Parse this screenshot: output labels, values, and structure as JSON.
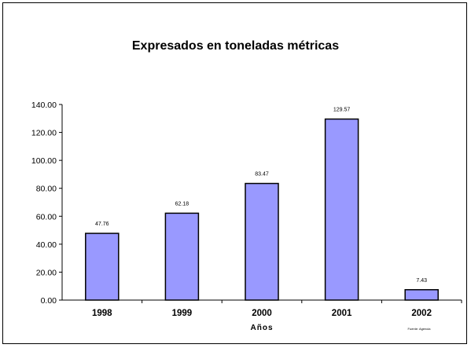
{
  "chart_data": {
    "type": "bar",
    "title": "Expresados en toneladas métricas",
    "xlabel": "Años",
    "ylabel": "",
    "categories": [
      "1998",
      "1999",
      "2000",
      "2001",
      "2002"
    ],
    "values": [
      47.76,
      62.18,
      83.47,
      129.57,
      7.43
    ],
    "value_labels": [
      "47.76",
      "62.18",
      "83.47",
      "129.57",
      "7.43"
    ],
    "ylim": [
      0,
      140
    ],
    "yticks": [
      0,
      20,
      40,
      60,
      80,
      100,
      120,
      140
    ],
    "ytick_labels": [
      "0.00",
      "20.00",
      "40.00",
      "60.00",
      "80.00",
      "100.00",
      "120.00",
      "140.00"
    ],
    "grid": false,
    "legend": "none",
    "bar_color": "#9999ff",
    "source_note": "Fuente: Agencia"
  }
}
